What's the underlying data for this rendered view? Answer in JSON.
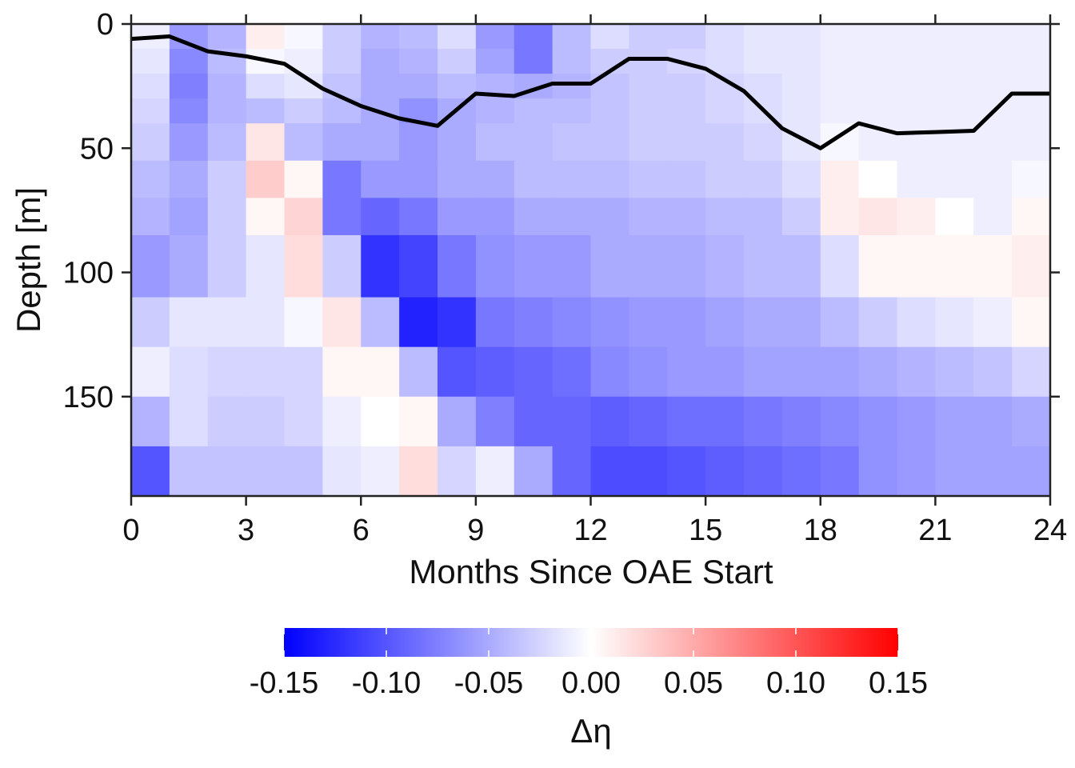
{
  "chart_data": {
    "type": "heatmap",
    "title": "",
    "xlabel": "Months Since OAE Start",
    "ylabel": "Depth [m]",
    "xlim": [
      0,
      24
    ],
    "ylim": [
      0,
      190
    ],
    "y_inverted": true,
    "x_ticks": [
      0,
      3,
      6,
      9,
      12,
      15,
      18,
      21,
      24
    ],
    "y_ticks": [
      0,
      50,
      100,
      150
    ],
    "x_cells": [
      0,
      1,
      2,
      3,
      4,
      5,
      6,
      7,
      8,
      9,
      10,
      11,
      12,
      13,
      14,
      15,
      16,
      17,
      18,
      19,
      20,
      21,
      22,
      23,
      24
    ],
    "depth_edges": [
      0,
      10,
      20,
      30,
      40,
      55,
      70,
      85,
      110,
      130,
      150,
      170,
      190
    ],
    "values": [
      [
        -0.01,
        -0.06,
        -0.045,
        0.01,
        -0.005,
        -0.03,
        -0.045,
        -0.04,
        -0.02,
        -0.06,
        -0.08,
        -0.04,
        -0.02,
        -0.03,
        -0.03,
        -0.02,
        -0.015,
        -0.015,
        -0.01,
        -0.01,
        -0.01,
        -0.01,
        -0.01,
        -0.01
      ],
      [
        -0.015,
        -0.07,
        -0.04,
        -0.005,
        -0.01,
        -0.03,
        -0.05,
        -0.045,
        -0.03,
        -0.055,
        -0.08,
        -0.04,
        -0.03,
        -0.03,
        -0.025,
        -0.02,
        -0.015,
        -0.015,
        -0.01,
        -0.01,
        -0.01,
        -0.01,
        -0.01,
        -0.01
      ],
      [
        -0.02,
        -0.075,
        -0.045,
        -0.02,
        -0.015,
        -0.035,
        -0.05,
        -0.05,
        -0.04,
        -0.045,
        -0.05,
        -0.045,
        -0.035,
        -0.03,
        -0.03,
        -0.025,
        -0.02,
        -0.015,
        -0.01,
        -0.01,
        -0.01,
        -0.01,
        -0.01,
        -0.01
      ],
      [
        -0.025,
        -0.07,
        -0.045,
        -0.04,
        -0.03,
        -0.04,
        -0.05,
        -0.065,
        -0.05,
        -0.045,
        -0.04,
        -0.04,
        -0.035,
        -0.03,
        -0.03,
        -0.025,
        -0.02,
        -0.015,
        -0.01,
        -0.01,
        -0.01,
        -0.01,
        -0.01,
        -0.01
      ],
      [
        -0.03,
        -0.06,
        -0.04,
        0.015,
        -0.04,
        -0.05,
        -0.05,
        -0.06,
        -0.05,
        -0.04,
        -0.04,
        -0.035,
        -0.035,
        -0.03,
        -0.03,
        -0.03,
        -0.025,
        -0.015,
        -0.005,
        -0.01,
        -0.01,
        -0.01,
        -0.01,
        -0.01
      ],
      [
        -0.04,
        -0.05,
        -0.03,
        0.03,
        0.005,
        -0.08,
        -0.06,
        -0.06,
        -0.05,
        -0.05,
        -0.04,
        -0.04,
        -0.04,
        -0.035,
        -0.035,
        -0.03,
        -0.03,
        -0.02,
        0.01,
        0.0,
        -0.01,
        -0.01,
        -0.01,
        -0.005
      ],
      [
        -0.045,
        -0.055,
        -0.03,
        0.005,
        0.025,
        -0.08,
        -0.09,
        -0.08,
        -0.06,
        -0.06,
        -0.05,
        -0.05,
        -0.05,
        -0.045,
        -0.045,
        -0.04,
        -0.04,
        -0.03,
        0.01,
        0.015,
        0.01,
        0.0,
        -0.01,
        0.005
      ],
      [
        -0.06,
        -0.05,
        -0.03,
        -0.015,
        0.02,
        -0.03,
        -0.12,
        -0.11,
        -0.08,
        -0.065,
        -0.06,
        -0.06,
        -0.05,
        -0.05,
        -0.05,
        -0.045,
        -0.04,
        -0.04,
        -0.02,
        0.005,
        0.005,
        0.005,
        0.005,
        0.01
      ],
      [
        -0.03,
        -0.015,
        -0.015,
        -0.015,
        -0.005,
        0.015,
        -0.04,
        -0.13,
        -0.12,
        -0.08,
        -0.075,
        -0.07,
        -0.065,
        -0.06,
        -0.06,
        -0.055,
        -0.05,
        -0.05,
        -0.04,
        -0.03,
        -0.02,
        -0.015,
        -0.01,
        0.005
      ],
      [
        -0.01,
        -0.02,
        -0.025,
        -0.025,
        -0.025,
        0.005,
        0.005,
        -0.04,
        -0.1,
        -0.095,
        -0.09,
        -0.085,
        -0.07,
        -0.065,
        -0.06,
        -0.06,
        -0.055,
        -0.055,
        -0.055,
        -0.05,
        -0.045,
        -0.04,
        -0.035,
        -0.025
      ],
      [
        -0.045,
        -0.02,
        -0.03,
        -0.03,
        -0.025,
        -0.01,
        0.0,
        0.005,
        -0.05,
        -0.075,
        -0.09,
        -0.09,
        -0.095,
        -0.09,
        -0.085,
        -0.085,
        -0.08,
        -0.075,
        -0.07,
        -0.065,
        -0.06,
        -0.055,
        -0.055,
        -0.05
      ],
      [
        -0.1,
        -0.035,
        -0.035,
        -0.035,
        -0.035,
        -0.015,
        -0.01,
        0.02,
        -0.025,
        -0.01,
        -0.05,
        -0.09,
        -0.105,
        -0.105,
        -0.1,
        -0.095,
        -0.09,
        -0.085,
        -0.08,
        -0.065,
        -0.06,
        -0.055,
        -0.055,
        -0.055
      ]
    ],
    "mld_line": {
      "x": [
        0,
        1,
        2,
        3,
        4,
        5,
        6,
        7,
        8,
        9,
        10,
        11,
        12,
        13,
        14,
        15,
        16,
        17,
        18,
        19,
        20,
        21,
        22,
        23,
        24
      ],
      "y": [
        6,
        5,
        11,
        13,
        16,
        26,
        33,
        38,
        41,
        28,
        29,
        24,
        24,
        14,
        14,
        18,
        27,
        42,
        50,
        40,
        44,
        43.5,
        43,
        28,
        28
      ]
    },
    "colorbar": {
      "label": "Δη",
      "min": -0.15,
      "max": 0.15,
      "ticks": [
        -0.15,
        -0.1,
        -0.05,
        0.0,
        0.05,
        0.1,
        0.15
      ],
      "tick_labels": [
        "-0.15",
        "-0.10",
        "-0.05",
        "0.00",
        "0.05",
        "0.10",
        "0.15"
      ],
      "colors": {
        "low": "#0000ff",
        "mid": "#ffffff",
        "high": "#ff0000"
      }
    }
  }
}
